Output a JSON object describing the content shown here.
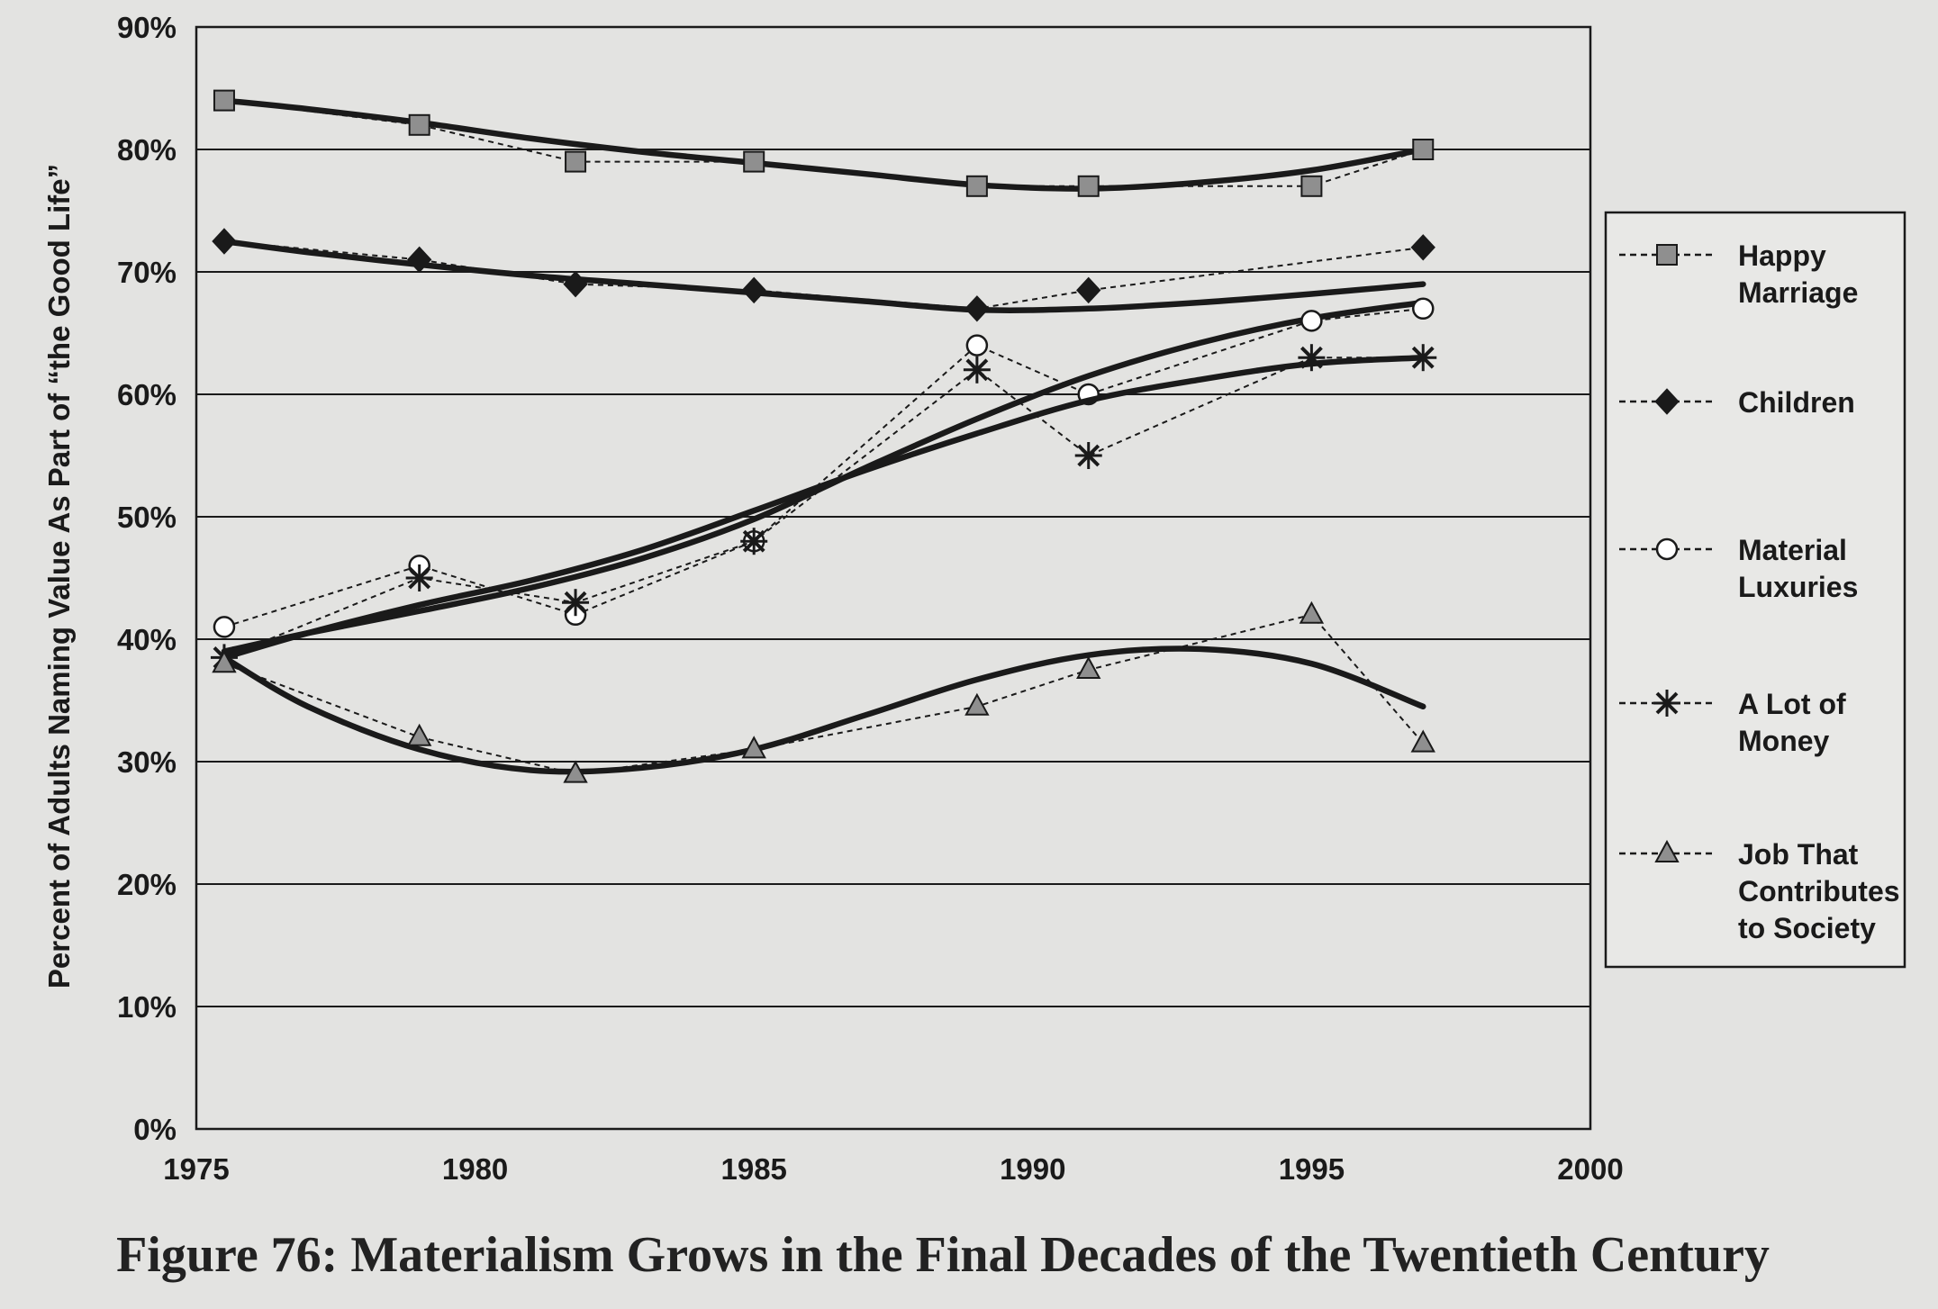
{
  "caption": "Figure 76: Materialism Grows in the Final Decades of the Twentieth Century",
  "chart_data": {
    "type": "line",
    "title": "",
    "xlabel": "",
    "ylabel": "Percent of Adults Naming Value As Part of “the Good Life”",
    "xlim": [
      1975,
      2000
    ],
    "ylim": [
      0,
      90
    ],
    "xticks": [
      1975,
      1980,
      1985,
      1990,
      1995,
      2000
    ],
    "yticks": [
      0,
      10,
      20,
      30,
      40,
      50,
      60,
      70,
      80,
      90
    ],
    "ytick_labels": [
      "0%",
      "10%",
      "20%",
      "30%",
      "40%",
      "50%",
      "60%",
      "70%",
      "80%",
      "90%"
    ],
    "legend_position": "right",
    "line_color": "#1a1a1a",
    "series": [
      {
        "name": "Happy Marriage",
        "marker": "square",
        "x": [
          1975.5,
          1979,
          1981.8,
          1985,
          1989,
          1991,
          1995,
          1997
        ],
        "y": [
          84,
          82,
          79,
          79,
          77,
          77,
          77,
          80
        ],
        "trend_x": [
          1975.5,
          1977,
          1979,
          1981,
          1983,
          1985,
          1987,
          1989,
          1991,
          1993,
          1995,
          1997
        ],
        "trend_y": [
          84,
          83.3,
          82.2,
          80.9,
          79.8,
          78.9,
          78,
          77.1,
          76.8,
          77.3,
          78.3,
          80
        ]
      },
      {
        "name": "Children",
        "marker": "diamond",
        "x": [
          1975.5,
          1979,
          1981.8,
          1985,
          1989,
          1991,
          1997
        ],
        "y": [
          72.5,
          71,
          69,
          68.5,
          67,
          68.5,
          72
        ],
        "trend_x": [
          1975.5,
          1977,
          1979,
          1981,
          1983,
          1985,
          1987,
          1989,
          1991,
          1993,
          1995,
          1997
        ],
        "trend_y": [
          72.5,
          71.6,
          70.6,
          69.7,
          69,
          68.3,
          67.6,
          66.9,
          67,
          67.5,
          68.2,
          69
        ]
      },
      {
        "name": "Material Luxuries",
        "marker": "circle",
        "x": [
          1975.5,
          1979,
          1981.8,
          1985,
          1989,
          1991,
          1995,
          1997
        ],
        "y": [
          41,
          46,
          42,
          48,
          64,
          60,
          66,
          67
        ],
        "trend_x": [
          1975.5,
          1977,
          1979,
          1981,
          1983,
          1985,
          1987,
          1989,
          1991,
          1993,
          1995,
          1997
        ],
        "trend_y": [
          39,
          40.5,
          42.3,
          44.2,
          46.6,
          49.8,
          54,
          58,
          61.5,
          64.2,
          66.2,
          67.5
        ]
      },
      {
        "name": "A Lot of Money",
        "marker": "star",
        "x": [
          1975.5,
          1979,
          1981.8,
          1985,
          1989,
          1991,
          1995,
          1997
        ],
        "y": [
          38.5,
          45,
          43,
          48,
          62,
          55,
          63,
          63
        ],
        "trend_x": [
          1975.5,
          1977,
          1979,
          1981,
          1983,
          1985,
          1987,
          1989,
          1991,
          1993,
          1995,
          1997
        ],
        "trend_y": [
          38.5,
          40.5,
          42.8,
          44.8,
          47.3,
          50.5,
          53.8,
          56.8,
          59.5,
          61.2,
          62.5,
          63
        ]
      },
      {
        "name": "Job That Contributes to Society",
        "legend_lines": [
          "Job That",
          "Contributes",
          "to Society"
        ],
        "marker": "triangle",
        "x": [
          1975.5,
          1979,
          1981.8,
          1985,
          1989,
          1991,
          1995,
          1997
        ],
        "y": [
          38,
          32,
          29,
          31,
          34.5,
          37.5,
          42,
          31.5
        ],
        "trend_x": [
          1975.5,
          1977,
          1979,
          1981,
          1983,
          1985,
          1987,
          1989,
          1991,
          1993,
          1995,
          1997
        ],
        "trend_y": [
          38.5,
          34.5,
          31,
          29.3,
          29.5,
          31,
          33.8,
          36.7,
          38.7,
          39.2,
          38,
          34.5
        ]
      }
    ]
  }
}
